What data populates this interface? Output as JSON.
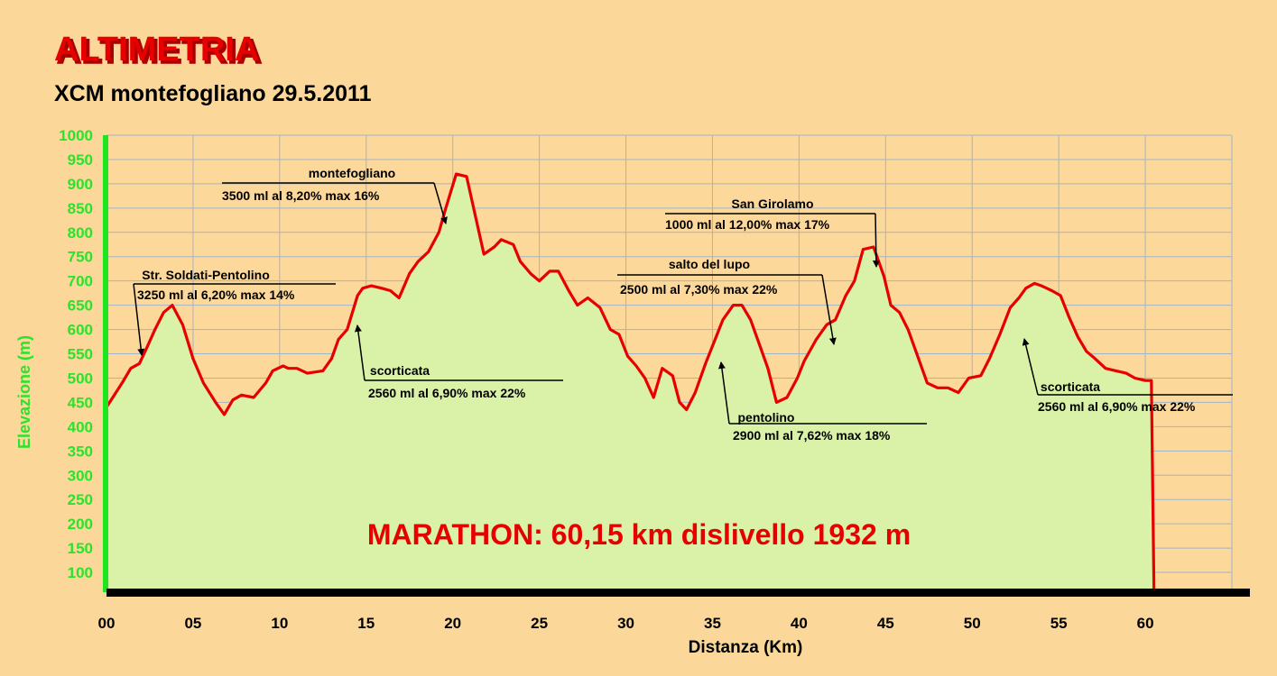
{
  "chart_data": {
    "type": "area",
    "title": "ALTIMETRIA",
    "subtitle": "XCM montefogliano 29.5.2011",
    "xlabel": "Distanza (Km)",
    "ylabel": "Elevazione (m)",
    "xlim": [
      0,
      65
    ],
    "ylim": [
      50,
      1000
    ],
    "xticks": [
      0,
      5,
      10,
      15,
      20,
      25,
      30,
      35,
      40,
      45,
      50,
      55,
      60
    ],
    "xtick_labels": [
      "00",
      "05",
      "10",
      "15",
      "20",
      "25",
      "30",
      "35",
      "40",
      "45",
      "50",
      "55",
      "60"
    ],
    "yticks": [
      100,
      150,
      200,
      250,
      300,
      350,
      400,
      450,
      500,
      550,
      600,
      650,
      700,
      750,
      800,
      850,
      900,
      950,
      1000
    ],
    "grid": true,
    "colors": {
      "fill": "#d9f2a8",
      "line": "#e60000",
      "axis": "#1ee61e",
      "ytick": "#2be32b",
      "title": "#e60000"
    },
    "headline": "MARATHON: 60,15 km dislivello 1932 m",
    "series": [
      {
        "x": [
          0,
          0.9,
          1.4,
          1.9,
          2.3,
          2.8,
          3.3,
          3.8,
          4.4,
          5.0,
          5.6,
          6.3,
          6.8,
          7.3,
          7.8,
          8.5,
          9.2,
          9.6,
          10.2,
          10.5,
          11.0,
          11.6,
          12.5,
          13.0,
          13.4,
          13.9,
          14.5,
          14.8,
          15.3,
          15.9,
          16.4,
          16.9,
          17.5,
          18.0,
          18.6,
          19.2,
          19.6,
          20.2,
          20.8,
          21.3,
          21.8,
          22.4,
          22.8,
          23.5,
          23.9,
          24.5,
          25.0,
          25.6,
          26.1,
          26.7,
          27.2,
          27.8,
          28.5,
          29.1,
          29.6,
          30.1,
          30.6,
          31.1,
          31.6,
          32.1,
          32.7,
          33.1,
          33.5,
          34.0,
          34.6,
          35.1,
          35.6,
          36.2,
          36.7,
          37.2,
          37.7,
          38.2,
          38.7,
          39.3,
          39.9,
          40.3,
          41.0,
          41.6,
          42.1,
          42.7,
          43.2,
          43.7,
          44.3,
          44.9,
          45.3,
          45.8,
          46.3,
          46.9,
          47.4,
          48.0,
          48.6,
          49.2,
          49.8,
          50.5,
          51.0,
          51.6,
          52.2,
          52.7,
          53.1,
          53.6,
          54.0,
          54.6,
          55.1,
          55.6,
          56.1,
          56.6,
          57.1,
          57.7,
          58.3,
          58.9,
          59.4,
          60.0,
          60.35,
          60.5,
          60.7
        ],
        "y": [
          440,
          490,
          520,
          530,
          560,
          600,
          635,
          650,
          610,
          540,
          490,
          450,
          425,
          455,
          465,
          460,
          490,
          515,
          525,
          520,
          520,
          510,
          515,
          540,
          580,
          600,
          670,
          685,
          690,
          685,
          680,
          665,
          715,
          740,
          760,
          800,
          850,
          920,
          915,
          835,
          755,
          770,
          785,
          775,
          740,
          715,
          700,
          720,
          720,
          680,
          650,
          665,
          645,
          600,
          590,
          545,
          525,
          500,
          460,
          520,
          505,
          450,
          435,
          470,
          530,
          575,
          620,
          650,
          650,
          620,
          570,
          520,
          450,
          460,
          500,
          535,
          580,
          610,
          620,
          670,
          700,
          765,
          770,
          710,
          650,
          635,
          600,
          540,
          490,
          480,
          480,
          470,
          500,
          505,
          540,
          590,
          645,
          665,
          685,
          695,
          690,
          680,
          670,
          625,
          585,
          555,
          540,
          520,
          515,
          510,
          500,
          495,
          495,
          60,
          60
        ]
      }
    ],
    "annotations": [
      {
        "title": "Str. Soldati-Pentolino",
        "detail": "3250 ml al 6,20% max 14%"
      },
      {
        "title": "montefogliano",
        "detail": "3500 ml al 8,20% max 16%"
      },
      {
        "title": "scorticata",
        "detail": "2560 ml al 6,90% max 22%"
      },
      {
        "title": "San Girolamo",
        "detail": "1000 ml al 12,00% max 17%"
      },
      {
        "title": "salto del lupo",
        "detail": "2500 ml al 7,30% max 22%"
      },
      {
        "title": "pentolino",
        "detail": "2900 ml al 7,62% max 18%"
      },
      {
        "title": "scorticata",
        "detail": "2560 ml al 6,90% max 22%"
      }
    ]
  }
}
